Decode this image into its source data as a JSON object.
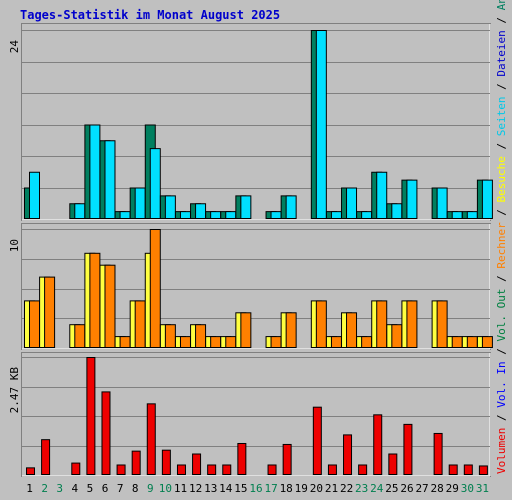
{
  "title": "Tages-Statistik im Monat August 2025",
  "colors": {
    "background": "#c0c0c0",
    "title": "#0000cc",
    "weekday": "#000000",
    "weekend": "#007f4f",
    "anfragen": "#007f5f",
    "dateien": "#00e0ff",
    "seiten": "#00e0ff",
    "besuche": "#ffff40",
    "rechner": "#ff8000",
    "volumen": "#ee0000",
    "vol_in": "#0000ff",
    "vol_out": "#008040"
  },
  "right_legend": {
    "top": [
      {
        "text": "Anfragen",
        "color": "#007f5f"
      },
      {
        "text": " / ",
        "color": "#000000"
      },
      {
        "text": "Dateien",
        "color": "#0000cc"
      },
      {
        "text": " / ",
        "color": "#000000"
      },
      {
        "text": "Seiten",
        "color": "#00c8e8"
      },
      {
        "text": " / ",
        "color": "#000000"
      },
      {
        "text": "Besuche",
        "color": "#ffff00"
      },
      {
        "text": " / ",
        "color": "#000000"
      },
      {
        "text": "Rechner",
        "color": "#ff8000"
      },
      {
        "text": " / ",
        "color": "#000000"
      },
      {
        "text": "Vol. Out",
        "color": "#008040"
      },
      {
        "text": " / ",
        "color": "#000000"
      },
      {
        "text": "Vol. In",
        "color": "#0000ff"
      },
      {
        "text": " / ",
        "color": "#000000"
      },
      {
        "text": "Volumen",
        "color": "#ee0000"
      }
    ]
  },
  "chart_data": [
    {
      "type": "bar",
      "panel": "top",
      "ymax_label": "24",
      "ylim": [
        0,
        24
      ],
      "categories": [
        "1",
        "2",
        "3",
        "4",
        "5",
        "6",
        "7",
        "8",
        "9",
        "10",
        "11",
        "12",
        "13",
        "14",
        "15",
        "16",
        "17",
        "18",
        "19",
        "20",
        "21",
        "22",
        "23",
        "24",
        "25",
        "26",
        "27",
        "28",
        "29",
        "30",
        "31"
      ],
      "series": [
        {
          "name": "Anfragen",
          "values": [
            4,
            0,
            0,
            2,
            12,
            10,
            1,
            4,
            12,
            3,
            1,
            2,
            1,
            1,
            3,
            0,
            1,
            3,
            0,
            24,
            1,
            4,
            1,
            6,
            2,
            5,
            0,
            4,
            1,
            1,
            5
          ]
        },
        {
          "name": "Dateien",
          "values": [
            6,
            0,
            0,
            2,
            12,
            10,
            1,
            4,
            9,
            3,
            1,
            2,
            1,
            1,
            3,
            0,
            1,
            3,
            0,
            24,
            1,
            4,
            1,
            6,
            2,
            5,
            0,
            4,
            1,
            1,
            5
          ]
        },
        {
          "name": "Seiten",
          "values": [
            6,
            0,
            0,
            2,
            12,
            10,
            1,
            4,
            9,
            3,
            1,
            2,
            1,
            1,
            3,
            0,
            1,
            3,
            0,
            24,
            1,
            4,
            1,
            6,
            2,
            5,
            0,
            4,
            1,
            1,
            5
          ]
        }
      ]
    },
    {
      "type": "bar",
      "panel": "middle",
      "ymax_label": "10",
      "ylim": [
        0,
        10
      ],
      "categories": [
        "1",
        "2",
        "3",
        "4",
        "5",
        "6",
        "7",
        "8",
        "9",
        "10",
        "11",
        "12",
        "13",
        "14",
        "15",
        "16",
        "17",
        "18",
        "19",
        "20",
        "21",
        "22",
        "23",
        "24",
        "25",
        "26",
        "27",
        "28",
        "29",
        "30",
        "31"
      ],
      "series": [
        {
          "name": "Besuche",
          "values": [
            4,
            6,
            0,
            2,
            8,
            7,
            1,
            4,
            8,
            2,
            1,
            2,
            1,
            1,
            3,
            0,
            1,
            3,
            0,
            4,
            1,
            3,
            1,
            4,
            2,
            4,
            0,
            4,
            1,
            1,
            1
          ]
        },
        {
          "name": "Rechner",
          "values": [
            4,
            6,
            0,
            2,
            8,
            7,
            1,
            4,
            10,
            2,
            1,
            2,
            1,
            1,
            3,
            0,
            1,
            3,
            0,
            4,
            1,
            3,
            1,
            4,
            2,
            4,
            0,
            4,
            1,
            1,
            1
          ]
        }
      ]
    },
    {
      "type": "bar",
      "panel": "bottom",
      "ymax_label": "2.47 KB",
      "ylim": [
        0,
        2.47
      ],
      "unit": "KB",
      "categories": [
        "1",
        "2",
        "3",
        "4",
        "5",
        "6",
        "7",
        "8",
        "9",
        "10",
        "11",
        "12",
        "13",
        "14",
        "15",
        "16",
        "17",
        "18",
        "19",
        "20",
        "21",
        "22",
        "23",
        "24",
        "25",
        "26",
        "27",
        "28",
        "29",
        "30",
        "31"
      ],
      "series": [
        {
          "name": "Volumen",
          "values": [
            0.16,
            0.75,
            0,
            0.26,
            2.47,
            1.75,
            0.22,
            0.51,
            1.5,
            0.53,
            0.22,
            0.45,
            0.22,
            0.22,
            0.67,
            0,
            0.22,
            0.65,
            0,
            1.43,
            0.22,
            0.85,
            0.22,
            1.27,
            0.45,
            1.07,
            0,
            0.88,
            0.22,
            0.22,
            0.2
          ]
        }
      ]
    }
  ],
  "day_labels": [
    {
      "text": "1",
      "weekend": false
    },
    {
      "text": "2",
      "weekend": true
    },
    {
      "text": "3",
      "weekend": true
    },
    {
      "text": "4",
      "weekend": false
    },
    {
      "text": "5",
      "weekend": false
    },
    {
      "text": "6",
      "weekend": false
    },
    {
      "text": "7",
      "weekend": false
    },
    {
      "text": "8",
      "weekend": false
    },
    {
      "text": "9",
      "weekend": true
    },
    {
      "text": "10",
      "weekend": true
    },
    {
      "text": "11",
      "weekend": false
    },
    {
      "text": "12",
      "weekend": false
    },
    {
      "text": "13",
      "weekend": false
    },
    {
      "text": "14",
      "weekend": false
    },
    {
      "text": "15",
      "weekend": false
    },
    {
      "text": "16",
      "weekend": true
    },
    {
      "text": "17",
      "weekend": true
    },
    {
      "text": "18",
      "weekend": false
    },
    {
      "text": "19",
      "weekend": false
    },
    {
      "text": "20",
      "weekend": false
    },
    {
      "text": "21",
      "weekend": false
    },
    {
      "text": "22",
      "weekend": false
    },
    {
      "text": "23",
      "weekend": true
    },
    {
      "text": "24",
      "weekend": true
    },
    {
      "text": "25",
      "weekend": false
    },
    {
      "text": "26",
      "weekend": false
    },
    {
      "text": "27",
      "weekend": false
    },
    {
      "text": "28",
      "weekend": false
    },
    {
      "text": "29",
      "weekend": false
    },
    {
      "text": "30",
      "weekend": true
    },
    {
      "text": "31",
      "weekend": true
    }
  ]
}
